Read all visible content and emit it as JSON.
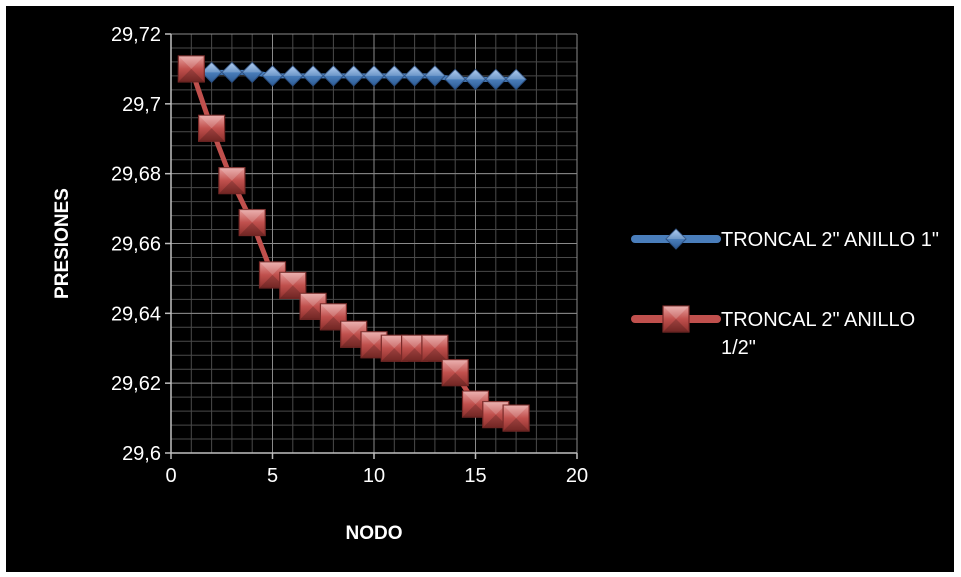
{
  "chart_data": {
    "type": "line",
    "title": "",
    "xlabel": "NODO",
    "ylabel": "PRESIONES",
    "xlim": [
      0,
      20
    ],
    "ylim": [
      29.6,
      29.72
    ],
    "x_ticks": [
      "0",
      "5",
      "10",
      "15",
      "20"
    ],
    "y_ticks": [
      "29,6",
      "29,62",
      "29,64",
      "29,66",
      "29,68",
      "29,7",
      "29,72"
    ],
    "grid": true,
    "legend_position": "right",
    "background": "#000000",
    "x": [
      1,
      2,
      3,
      4,
      5,
      6,
      7,
      8,
      9,
      10,
      11,
      12,
      13,
      14,
      15,
      16,
      17
    ],
    "series": [
      {
        "name": "TRONCAL 2\" ANILLO 1\"",
        "legend_lines": [
          "TRONCAL 2\" ANILLO 1\""
        ],
        "color": "#4a7ebb",
        "marker": "diamond",
        "values": [
          29.709,
          29.709,
          29.709,
          29.709,
          29.708,
          29.708,
          29.708,
          29.708,
          29.708,
          29.708,
          29.708,
          29.708,
          29.708,
          29.707,
          29.707,
          29.707,
          29.707
        ]
      },
      {
        "name": "TRONCAL 2\" ANILLO 1/2\"",
        "legend_lines": [
          "TRONCAL 2\" ANILLO",
          "1/2\""
        ],
        "color": "#c0504d",
        "marker": "square",
        "values": [
          29.71,
          29.693,
          29.678,
          29.666,
          29.651,
          29.648,
          29.642,
          29.639,
          29.634,
          29.631,
          29.63,
          29.63,
          29.63,
          29.623,
          29.614,
          29.611,
          29.61
        ]
      }
    ]
  }
}
